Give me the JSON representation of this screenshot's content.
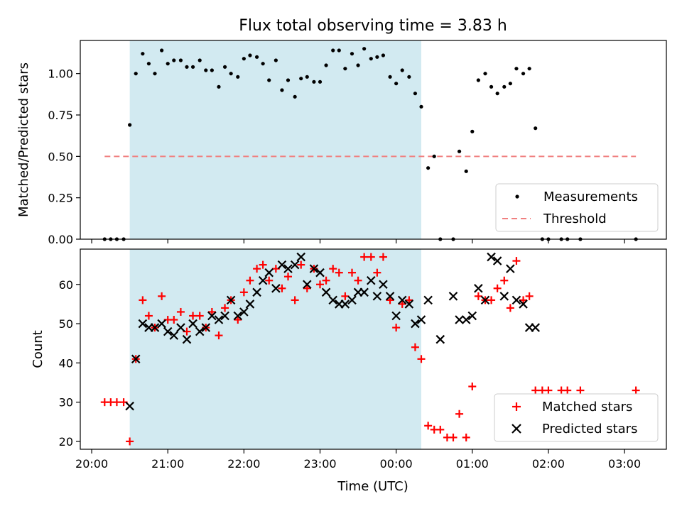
{
  "chart_data": [
    {
      "panel": "top",
      "type": "scatter",
      "title": "Flux total observing time = 3.83 h",
      "xlabel": "",
      "ylabel": "Matched/Predicted stars",
      "xlim_hours": [
        19.85,
        27.55
      ],
      "ylim": [
        0,
        1.2
      ],
      "yticks": [
        0.0,
        0.25,
        0.5,
        0.75,
        1.0
      ],
      "ytick_labels": [
        "0.00",
        "0.25",
        "0.50",
        "0.75",
        "1.00"
      ],
      "grid": false,
      "legend_position": "lower right",
      "shaded_interval_hours": [
        20.5,
        24.33
      ],
      "shaded_color": "#add8e6",
      "threshold": {
        "name": "Threshold",
        "value": 0.5,
        "x_range_hours": [
          20.17,
          27.15
        ],
        "color": "#f08080"
      },
      "series": [
        {
          "name": "Measurements",
          "color": "#000000",
          "x_hours": [
            20.17,
            20.25,
            20.33,
            20.42,
            20.5,
            20.58,
            20.67,
            20.75,
            20.83,
            20.92,
            21.0,
            21.08,
            21.17,
            21.25,
            21.33,
            21.42,
            21.5,
            21.58,
            21.67,
            21.75,
            21.83,
            21.92,
            22.0,
            22.08,
            22.17,
            22.25,
            22.33,
            22.42,
            22.5,
            22.58,
            22.67,
            22.75,
            22.83,
            22.92,
            23.0,
            23.08,
            23.17,
            23.25,
            23.33,
            23.42,
            23.5,
            23.58,
            23.67,
            23.75,
            23.83,
            23.92,
            24.0,
            24.08,
            24.17,
            24.25,
            24.33,
            24.42,
            24.5,
            24.58,
            24.75,
            24.83,
            24.92,
            25.0,
            25.08,
            25.17,
            25.25,
            25.33,
            25.42,
            25.5,
            25.58,
            25.67,
            25.75,
            25.83,
            25.92,
            26.0,
            26.17,
            26.25,
            26.42,
            27.15
          ],
          "y": [
            0.0,
            0.0,
            0.0,
            0.0,
            0.69,
            1.0,
            1.12,
            1.06,
            1.0,
            1.14,
            1.06,
            1.08,
            1.08,
            1.04,
            1.04,
            1.08,
            1.02,
            1.02,
            0.92,
            1.04,
            1.0,
            0.98,
            1.09,
            1.11,
            1.1,
            1.06,
            0.96,
            1.08,
            0.9,
            0.96,
            0.86,
            0.97,
            0.98,
            0.95,
            0.95,
            1.05,
            1.14,
            1.14,
            1.03,
            1.12,
            1.05,
            1.15,
            1.09,
            1.1,
            1.11,
            0.98,
            0.94,
            1.02,
            0.98,
            0.88,
            0.8,
            0.43,
            0.5,
            0.0,
            0.0,
            0.53,
            0.41,
            0.65,
            0.96,
            1.0,
            0.92,
            0.88,
            0.92,
            0.94,
            1.03,
            1.0,
            1.03,
            0.67,
            0.0,
            0.0,
            0.0,
            0.0,
            0.0,
            0.0
          ]
        }
      ]
    },
    {
      "panel": "bottom",
      "type": "scatter",
      "title": "",
      "xlabel": "Time (UTC)",
      "ylabel": "Count",
      "xlim_hours": [
        19.85,
        27.55
      ],
      "ylim": [
        18,
        69
      ],
      "yticks": [
        20,
        30,
        40,
        50,
        60
      ],
      "ytick_labels": [
        "20",
        "30",
        "40",
        "50",
        "60"
      ],
      "xticks_hours": [
        20,
        21,
        22,
        23,
        24,
        25,
        26,
        27
      ],
      "xtick_labels": [
        "20:00",
        "21:00",
        "22:00",
        "23:00",
        "00:00",
        "01:00",
        "02:00",
        "03:00"
      ],
      "grid": false,
      "legend_position": "lower right",
      "shaded_interval_hours": [
        20.5,
        24.33
      ],
      "shaded_color": "#add8e6",
      "series": [
        {
          "name": "Matched stars",
          "marker": "+",
          "color": "#ff0000",
          "x_hours": [
            20.17,
            20.25,
            20.33,
            20.42,
            20.5,
            20.58,
            20.67,
            20.75,
            20.83,
            20.92,
            21.0,
            21.08,
            21.17,
            21.25,
            21.33,
            21.42,
            21.5,
            21.58,
            21.67,
            21.75,
            21.83,
            21.92,
            22.0,
            22.08,
            22.17,
            22.25,
            22.33,
            22.42,
            22.5,
            22.58,
            22.67,
            22.75,
            22.83,
            22.92,
            23.0,
            23.08,
            23.17,
            23.25,
            23.33,
            23.42,
            23.5,
            23.58,
            23.67,
            23.75,
            23.83,
            23.92,
            24.0,
            24.08,
            24.17,
            24.25,
            24.33,
            24.42,
            24.5,
            24.58,
            24.67,
            24.75,
            24.83,
            24.92,
            25.0,
            25.08,
            25.17,
            25.25,
            25.33,
            25.42,
            25.5,
            25.58,
            25.67,
            25.75,
            25.83,
            25.92,
            26.0,
            26.17,
            26.25,
            26.42,
            27.15
          ],
          "y": [
            30,
            30,
            30,
            30,
            20,
            41,
            56,
            52,
            49,
            57,
            51,
            51,
            53,
            48,
            52,
            52,
            49,
            53,
            47,
            54,
            56,
            51,
            58,
            61,
            64,
            65,
            61,
            64,
            59,
            62,
            56,
            65,
            59,
            64,
            60,
            61,
            64,
            63,
            57,
            63,
            61,
            67,
            67,
            63,
            67,
            56,
            49,
            55,
            56,
            44,
            41,
            24,
            23,
            23,
            21,
            21,
            27,
            21,
            34,
            57,
            56,
            56,
            59,
            61,
            54,
            66,
            56,
            57,
            33,
            33,
            33,
            33,
            33,
            33,
            33
          ]
        },
        {
          "name": "Predicted stars",
          "marker": "x",
          "color": "#000000",
          "x_hours": [
            20.5,
            20.58,
            20.67,
            20.75,
            20.83,
            20.92,
            21.0,
            21.08,
            21.17,
            21.25,
            21.33,
            21.42,
            21.5,
            21.58,
            21.67,
            21.75,
            21.83,
            21.92,
            22.0,
            22.08,
            22.17,
            22.25,
            22.33,
            22.42,
            22.5,
            22.58,
            22.67,
            22.75,
            22.83,
            22.92,
            23.0,
            23.08,
            23.17,
            23.25,
            23.33,
            23.42,
            23.5,
            23.58,
            23.67,
            23.75,
            23.83,
            23.92,
            24.0,
            24.08,
            24.17,
            24.25,
            24.33,
            24.42,
            24.58,
            24.75,
            24.83,
            24.92,
            25.0,
            25.08,
            25.17,
            25.25,
            25.33,
            25.42,
            25.5,
            25.58,
            25.67,
            25.75,
            25.83
          ],
          "y": [
            29,
            41,
            50,
            49,
            49,
            50,
            48,
            47,
            49,
            46,
            50,
            48,
            49,
            52,
            51,
            52,
            56,
            52,
            53,
            55,
            58,
            61,
            63,
            59,
            65,
            64,
            65,
            67,
            60,
            64,
            63,
            58,
            56,
            55,
            55,
            56,
            58,
            58,
            61,
            57,
            60,
            57,
            52,
            56,
            55,
            50,
            51,
            56,
            46,
            57,
            51,
            51,
            52,
            59,
            56,
            67,
            66,
            57,
            64,
            56,
            55,
            49,
            49
          ]
        }
      ]
    }
  ]
}
